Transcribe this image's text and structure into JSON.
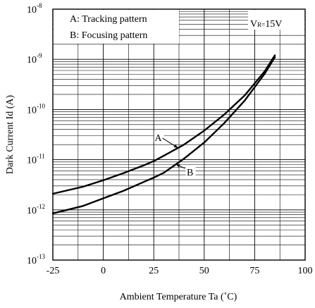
{
  "chart_data": {
    "type": "line",
    "title": "",
    "xlabel": "Ambient Temperature Ta (˚C)",
    "ylabel": "Dark Current Id (A)",
    "xlim": [
      -25,
      100
    ],
    "ylim": [
      1e-13,
      1e-08
    ],
    "yscale": "log",
    "grid": true,
    "x_ticks": [
      "-25",
      "0",
      "25",
      "50",
      "75",
      "100"
    ],
    "y_ticks": [
      {
        "base": "10",
        "exp": "-13"
      },
      {
        "base": "10",
        "exp": "-12"
      },
      {
        "base": "10",
        "exp": "-11"
      },
      {
        "base": "10",
        "exp": "-10"
      },
      {
        "base": "10",
        "exp": "-9"
      },
      {
        "base": "10",
        "exp": "-8"
      }
    ],
    "legend": {
      "placement": "top-left",
      "entries": [
        "A: Tracking pattern",
        "B: Focusing pattern"
      ]
    },
    "condition": {
      "main": "V",
      "sub": "R=",
      "value": "15V"
    },
    "series": [
      {
        "name": "A",
        "x": [
          -25,
          -10,
          0,
          10,
          20,
          25,
          30,
          40,
          50,
          60,
          70,
          80,
          85
        ],
        "y": [
          2.1e-12,
          2.9e-12,
          3.9e-12,
          5.4e-12,
          7.7e-12,
          9.4e-12,
          1.2e-11,
          2e-11,
          3.8e-11,
          8e-11,
          1.9e-10,
          5.8e-10,
          1.2e-09
        ]
      },
      {
        "name": "B",
        "x": [
          -25,
          -10,
          0,
          10,
          20,
          25,
          30,
          40,
          50,
          60,
          70,
          80,
          85
        ],
        "y": [
          8.5e-13,
          1.2e-12,
          1.7e-12,
          2.4e-12,
          3.6e-12,
          4.4e-12,
          5.5e-12,
          1.05e-11,
          2.2e-11,
          5.4e-11,
          1.5e-10,
          5.2e-10,
          1.1e-09
        ]
      }
    ],
    "annotations": [
      {
        "label": "A",
        "series": "A",
        "x": 37
      },
      {
        "label": "B",
        "series": "B",
        "x": 36
      }
    ]
  }
}
